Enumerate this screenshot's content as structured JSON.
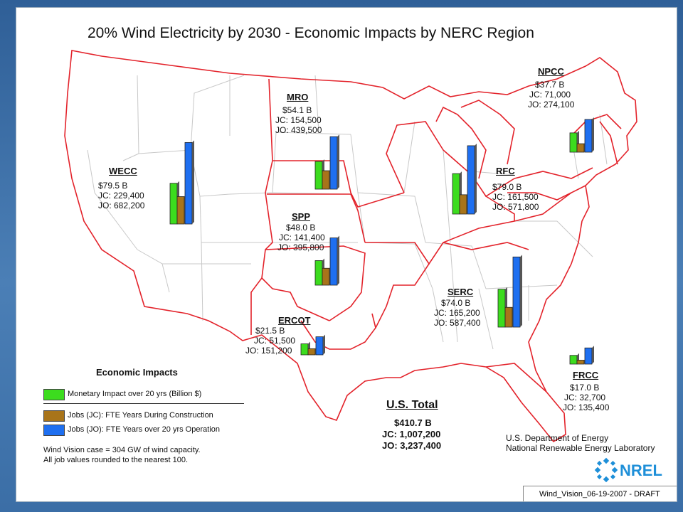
{
  "title": "20% Wind Electricity by 2030 - Economic Impacts by NERC Region",
  "colors": {
    "monetary": "#3cdc1e",
    "construction": "#a8741a",
    "operation": "#1e6ff0",
    "border": "#e3232b"
  },
  "regions": [
    {
      "name": "WECC",
      "monetary": "$79.5 B",
      "jc": "JC:  229,400",
      "jo": "JO:  682,200",
      "chart_data": {
        "monetary_b": 79.5,
        "jc": 229400,
        "jo": 682200
      }
    },
    {
      "name": "MRO",
      "monetary": "$54.1 B",
      "jc": "JC:  154,500",
      "jo": "JO:  439,500",
      "chart_data": {
        "monetary_b": 54.1,
        "jc": 154500,
        "jo": 439500
      }
    },
    {
      "name": "SPP",
      "monetary": "$48.0 B",
      "jc": "JC:  141,400",
      "jo": "JO:  395,800",
      "chart_data": {
        "monetary_b": 48.0,
        "jc": 141400,
        "jo": 395800
      }
    },
    {
      "name": "ERCOT",
      "monetary": "$21.5 B",
      "jc": "JC:  51,500",
      "jo": "JO:  151,200",
      "chart_data": {
        "monetary_b": 21.5,
        "jc": 51500,
        "jo": 151200
      }
    },
    {
      "name": "NPCC",
      "monetary": "$37.7 B",
      "jc": "JC:  71,000",
      "jo": "JO:  274,100",
      "chart_data": {
        "monetary_b": 37.7,
        "jc": 71000,
        "jo": 274100
      }
    },
    {
      "name": "RFC",
      "monetary": "$79.0 B",
      "jc": "JC:  161,500",
      "jo": "JO:  571,800",
      "chart_data": {
        "monetary_b": 79.0,
        "jc": 161500,
        "jo": 571800
      }
    },
    {
      "name": "SERC",
      "monetary": "$74.0 B",
      "jc": "JC:  165,200",
      "jo": "JO:  587,400",
      "chart_data": {
        "monetary_b": 74.0,
        "jc": 165200,
        "jo": 587400
      }
    },
    {
      "name": "FRCC",
      "monetary": "$17.0 B",
      "jc": "JC:  32,700",
      "jo": "JO:  135,400",
      "chart_data": {
        "monetary_b": 17.0,
        "jc": 32700,
        "jo": 135400
      }
    }
  ],
  "legend": {
    "title": "Economic Impacts",
    "items": [
      "Monetary Impact over 20 yrs (Billion $)",
      "Jobs (JC): FTE Years During Construction",
      "Jobs (JO): FTE Years over 20 yrs Operation"
    ],
    "note1": "Wind Vision case = 304 GW of wind capacity.",
    "note2": "All job values rounded to the nearest 100."
  },
  "us_total": {
    "title": "U.S. Total",
    "monetary": "$410.7 B",
    "jc": "JC:  1,007,200",
    "jo": "JO:  3,237,400"
  },
  "agency": {
    "line1": "U.S. Department of Energy",
    "line2": "National Renewable Energy Laboratory"
  },
  "logo_text": "NREL",
  "footer": "Wind_Vision_06-19-2007 - DRAFT"
}
